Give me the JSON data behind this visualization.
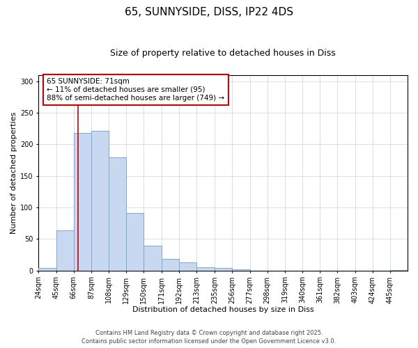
{
  "title": "65, SUNNYSIDE, DISS, IP22 4DS",
  "subtitle": "Size of property relative to detached houses in Diss",
  "xlabel": "Distribution of detached houses by size in Diss",
  "ylabel": "Number of detached properties",
  "bar_color": "#c8d8f0",
  "bar_edge_color": "#7aaad0",
  "background_color": "#ffffff",
  "grid_color": "#d0d8e8",
  "bin_labels": [
    "24sqm",
    "45sqm",
    "66sqm",
    "87sqm",
    "108sqm",
    "129sqm",
    "150sqm",
    "171sqm",
    "192sqm",
    "213sqm",
    "235sqm",
    "256sqm",
    "277sqm",
    "298sqm",
    "319sqm",
    "340sqm",
    "361sqm",
    "382sqm",
    "403sqm",
    "424sqm",
    "445sqm"
  ],
  "bar_heights": [
    4,
    64,
    218,
    221,
    179,
    91,
    39,
    18,
    13,
    5,
    4,
    2,
    0,
    0,
    0,
    0,
    0,
    0,
    0,
    0,
    1
  ],
  "bin_edges": [
    24,
    45,
    66,
    87,
    108,
    129,
    150,
    171,
    192,
    213,
    235,
    256,
    277,
    298,
    319,
    340,
    361,
    382,
    403,
    424,
    445,
    466
  ],
  "vline_x": 71,
  "vline_color": "#cc0000",
  "ylim": [
    0,
    310
  ],
  "yticks": [
    0,
    50,
    100,
    150,
    200,
    250,
    300
  ],
  "annotation_title": "65 SUNNYSIDE: 71sqm",
  "annotation_line1": "← 11% of detached houses are smaller (95)",
  "annotation_line2": "88% of semi-detached houses are larger (749) →",
  "annotation_box_color": "#ffffff",
  "annotation_box_edge": "#cc0000",
  "footer1": "Contains HM Land Registry data © Crown copyright and database right 2025.",
  "footer2": "Contains public sector information licensed under the Open Government Licence v3.0.",
  "title_fontsize": 11,
  "subtitle_fontsize": 9,
  "axis_label_fontsize": 8,
  "tick_label_fontsize": 7,
  "annotation_fontsize": 7.5,
  "footer_fontsize": 6
}
